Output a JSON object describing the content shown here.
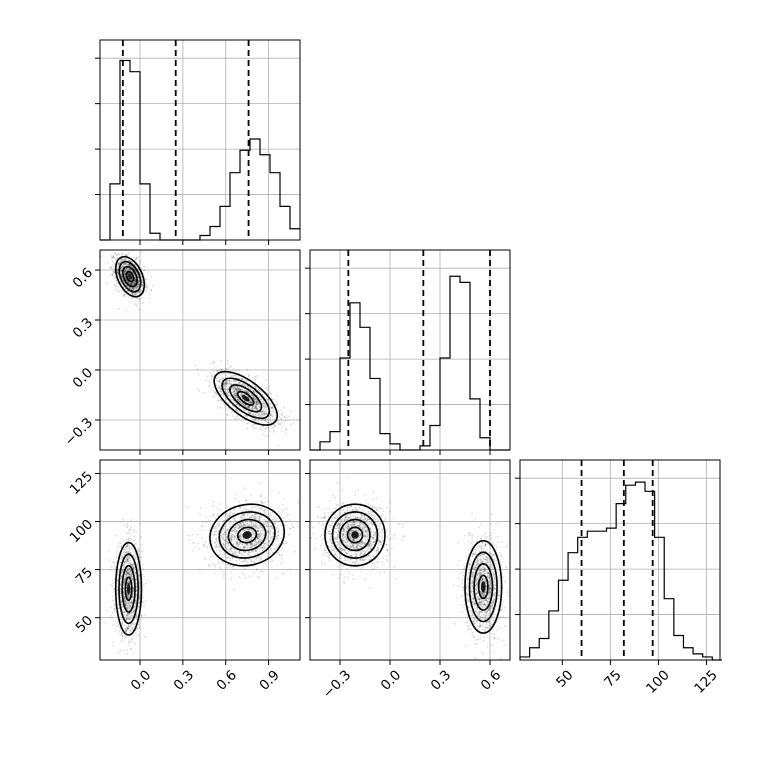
{
  "chart_data": {
    "type": "corner",
    "grid": true,
    "parameters": [
      {
        "id": "p0",
        "range": [
          -0.28,
          1.12
        ],
        "ticks": [
          "0.0",
          "0.3",
          "0.6",
          "0.9"
        ],
        "tick_values": [
          0.0,
          0.3,
          0.6,
          0.9
        ]
      },
      {
        "id": "p1",
        "range": [
          -0.48,
          0.72
        ],
        "ticks": [
          "−0.3",
          "0.0",
          "0.3",
          "0.6"
        ],
        "tick_values": [
          -0.3,
          0.0,
          0.3,
          0.6
        ]
      },
      {
        "id": "p2",
        "range": [
          28,
          132
        ],
        "ticks": [
          "50",
          "75",
          "100",
          "125"
        ],
        "tick_values": [
          50,
          75,
          100,
          125
        ]
      }
    ],
    "histograms": [
      {
        "param": "p0",
        "bins": [
          -0.28,
          -0.21,
          -0.14,
          -0.07,
          0.0,
          0.07,
          0.14,
          0.21,
          0.28,
          0.35,
          0.42,
          0.49,
          0.56,
          0.63,
          0.7,
          0.77,
          0.84,
          0.91,
          0.98,
          1.05,
          1.12
        ],
        "counts": [
          0,
          25,
          80,
          75,
          25,
          3,
          0,
          0,
          0,
          0,
          2,
          6,
          15,
          30,
          40,
          45,
          38,
          30,
          15,
          5
        ],
        "max": 82,
        "quantiles": [
          -0.12,
          0.25,
          0.76
        ]
      },
      {
        "param": "p1",
        "bins": [
          -0.48,
          -0.42,
          -0.36,
          -0.3,
          -0.24,
          -0.18,
          -0.12,
          -0.06,
          0.0,
          0.06,
          0.12,
          0.18,
          0.24,
          0.3,
          0.36,
          0.42,
          0.48,
          0.54,
          0.6,
          0.66,
          0.72
        ],
        "counts": [
          0,
          4,
          9,
          45,
          72,
          60,
          35,
          8,
          3,
          0,
          0,
          2,
          12,
          45,
          85,
          82,
          25,
          6,
          0,
          0
        ],
        "max": 90,
        "quantiles": [
          -0.25,
          0.2,
          0.6
        ]
      },
      {
        "param": "p2",
        "bins": [
          28,
          33,
          38,
          43,
          48,
          53,
          58,
          63,
          68,
          73,
          78,
          83,
          88,
          93,
          98,
          103,
          108,
          113,
          118,
          123,
          128,
          133
        ],
        "counts": [
          1,
          4,
          7,
          16,
          26,
          35,
          40,
          42,
          42,
          43,
          51,
          57,
          58,
          55,
          40,
          20,
          8,
          4,
          2,
          1,
          0
        ],
        "max": 60,
        "quantiles": [
          60,
          82,
          97
        ]
      }
    ],
    "scatter_panels": [
      {
        "x_param": "p0",
        "y_param": "p1",
        "modes": [
          {
            "center": [
              -0.07,
              0.56
            ],
            "sd": [
              0.05,
              0.06
            ],
            "corr": -0.4,
            "weight": 0.5
          },
          {
            "center": [
              0.74,
              -0.17
            ],
            "sd": [
              0.11,
              0.08
            ],
            "corr": -0.65,
            "weight": 0.5
          }
        ]
      },
      {
        "x_param": "p0",
        "y_param": "p2",
        "modes": [
          {
            "center": [
              -0.08,
              65
            ],
            "sd": [
              0.045,
              12
            ],
            "corr": 0.0,
            "weight": 0.5
          },
          {
            "center": [
              0.75,
              93
            ],
            "sd": [
              0.13,
              8
            ],
            "corr": 0.1,
            "weight": 0.5
          }
        ]
      },
      {
        "x_param": "p1",
        "y_param": "p2",
        "modes": [
          {
            "center": [
              -0.21,
              93
            ],
            "sd": [
              0.09,
              8
            ],
            "corr": 0.0,
            "weight": 0.5
          },
          {
            "center": [
              0.56,
              66
            ],
            "sd": [
              0.055,
              12
            ],
            "corr": 0.0,
            "weight": 0.5
          }
        ]
      }
    ],
    "contour_levels_sigma": [
      0.5,
      1.0,
      1.5,
      2.0
    ],
    "colors": {
      "line": "#000000",
      "grid": "#b0b0b0",
      "density": "#000000"
    }
  }
}
